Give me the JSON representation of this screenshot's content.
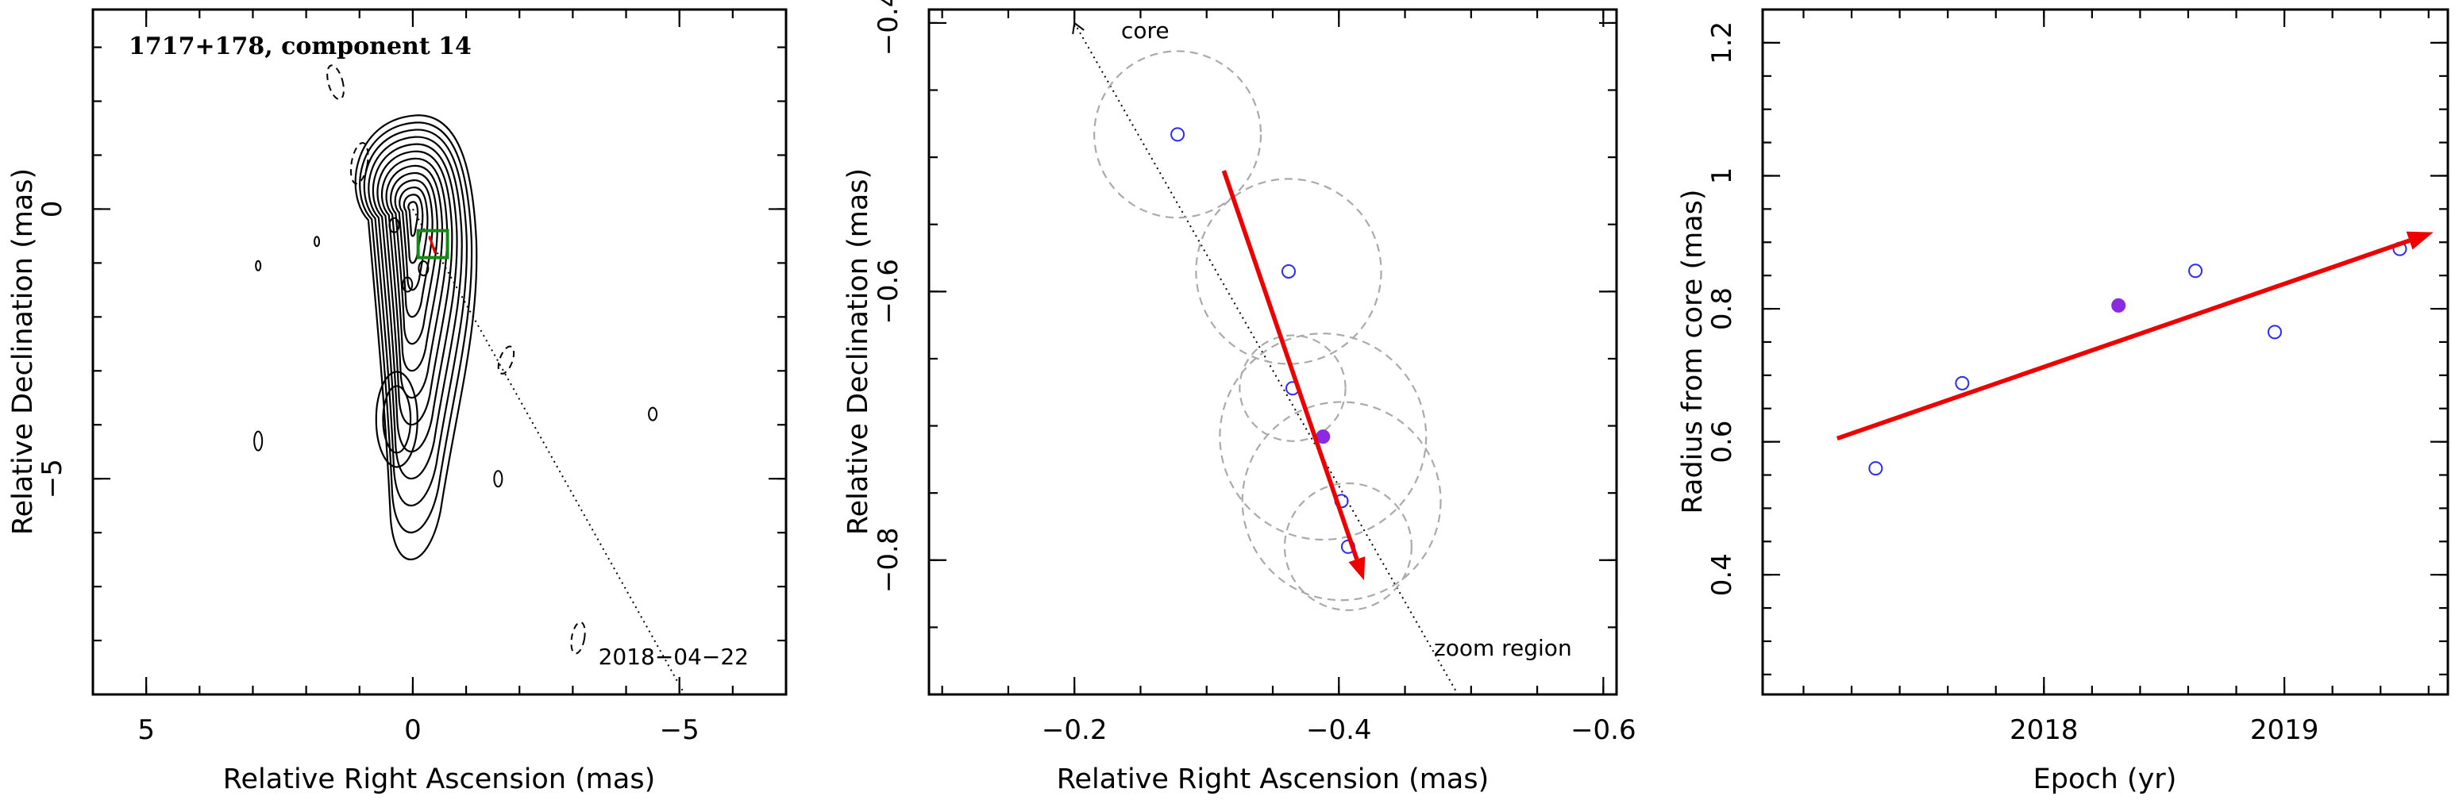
{
  "chart_data": [
    {
      "type": "contour",
      "title": "1717+178, component 14",
      "xlabel": "Relative Right Ascension (mas)",
      "ylabel": "Relative Declination (mas)",
      "xlim": [
        6,
        -7
      ],
      "ylim": [
        -9,
        3.7
      ],
      "xticks": [
        5,
        0,
        -5
      ],
      "yticks": [
        0,
        -5
      ],
      "xtick_labels": [
        "5",
        "0",
        "−5"
      ],
      "ytick_labels": [
        "0",
        "−5"
      ],
      "date_label": "2018−04−22",
      "core_contour_levels": 13,
      "box_color": "#138a13",
      "arrow_color": "#ee0000"
    },
    {
      "type": "scatter",
      "xlabel": "Relative Right Ascension (mas)",
      "ylabel": "Relative Declination (mas)",
      "xlim": [
        -0.09,
        -0.61
      ],
      "ylim": [
        -0.9,
        -0.39
      ],
      "xticks": [
        -0.2,
        -0.4,
        -0.6
      ],
      "yticks": [
        -0.4,
        -0.6,
        -0.8
      ],
      "xtick_labels": [
        "−0.2",
        "−0.4",
        "−0.6"
      ],
      "ytick_labels": [
        "−0.4",
        "−0.6",
        "−0.8"
      ],
      "points": [
        {
          "x": -0.278,
          "y": -0.483,
          "r": 0.063,
          "filled": false
        },
        {
          "x": -0.362,
          "y": -0.585,
          "r": 0.07,
          "filled": false
        },
        {
          "x": -0.365,
          "y": -0.672,
          "r": 0.04,
          "filled": false
        },
        {
          "x": -0.388,
          "y": -0.708,
          "r": 0.078,
          "filled": true
        },
        {
          "x": -0.402,
          "y": -0.756,
          "r": 0.075,
          "filled": false
        },
        {
          "x": -0.407,
          "y": -0.79,
          "r": 0.048,
          "filled": false
        }
      ],
      "motion_vector": {
        "x0": -0.313,
        "y0": -0.51,
        "x1": -0.419,
        "y1": -0.815
      },
      "core_direction_label": "core",
      "zoom_label": "zoom region",
      "point_color": "#2a2aff",
      "filled_point_color": "#8a2be2",
      "arrow_color": "#ee0000",
      "circle_color": "#aaaaaa"
    },
    {
      "type": "scatter",
      "xlabel": "Epoch (yr)",
      "ylabel": "Radius from core (mas)",
      "xlim": [
        2016.83,
        2019.68
      ],
      "ylim": [
        0.22,
        1.25
      ],
      "xticks": [
        2018,
        2019
      ],
      "yticks": [
        0.4,
        0.6,
        0.8,
        1.0,
        1.2
      ],
      "xtick_labels": [
        "2018",
        "2019"
      ],
      "ytick_labels": [
        "0.4",
        "0.6",
        "0.8",
        "1",
        "1.2"
      ],
      "points": [
        {
          "x": 2017.3,
          "y": 0.56,
          "filled": false
        },
        {
          "x": 2017.66,
          "y": 0.688,
          "filled": false
        },
        {
          "x": 2018.31,
          "y": 0.805,
          "filled": true
        },
        {
          "x": 2018.63,
          "y": 0.857,
          "filled": false
        },
        {
          "x": 2018.96,
          "y": 0.765,
          "filled": false
        },
        {
          "x": 2019.48,
          "y": 0.89,
          "filled": false
        }
      ],
      "fit_line": {
        "x0": 2017.14,
        "y0": 0.605,
        "x1": 2019.62,
        "y1": 0.915
      },
      "point_color": "#2a2aff",
      "filled_point_color": "#8a2be2",
      "arrow_color": "#ee0000"
    }
  ]
}
